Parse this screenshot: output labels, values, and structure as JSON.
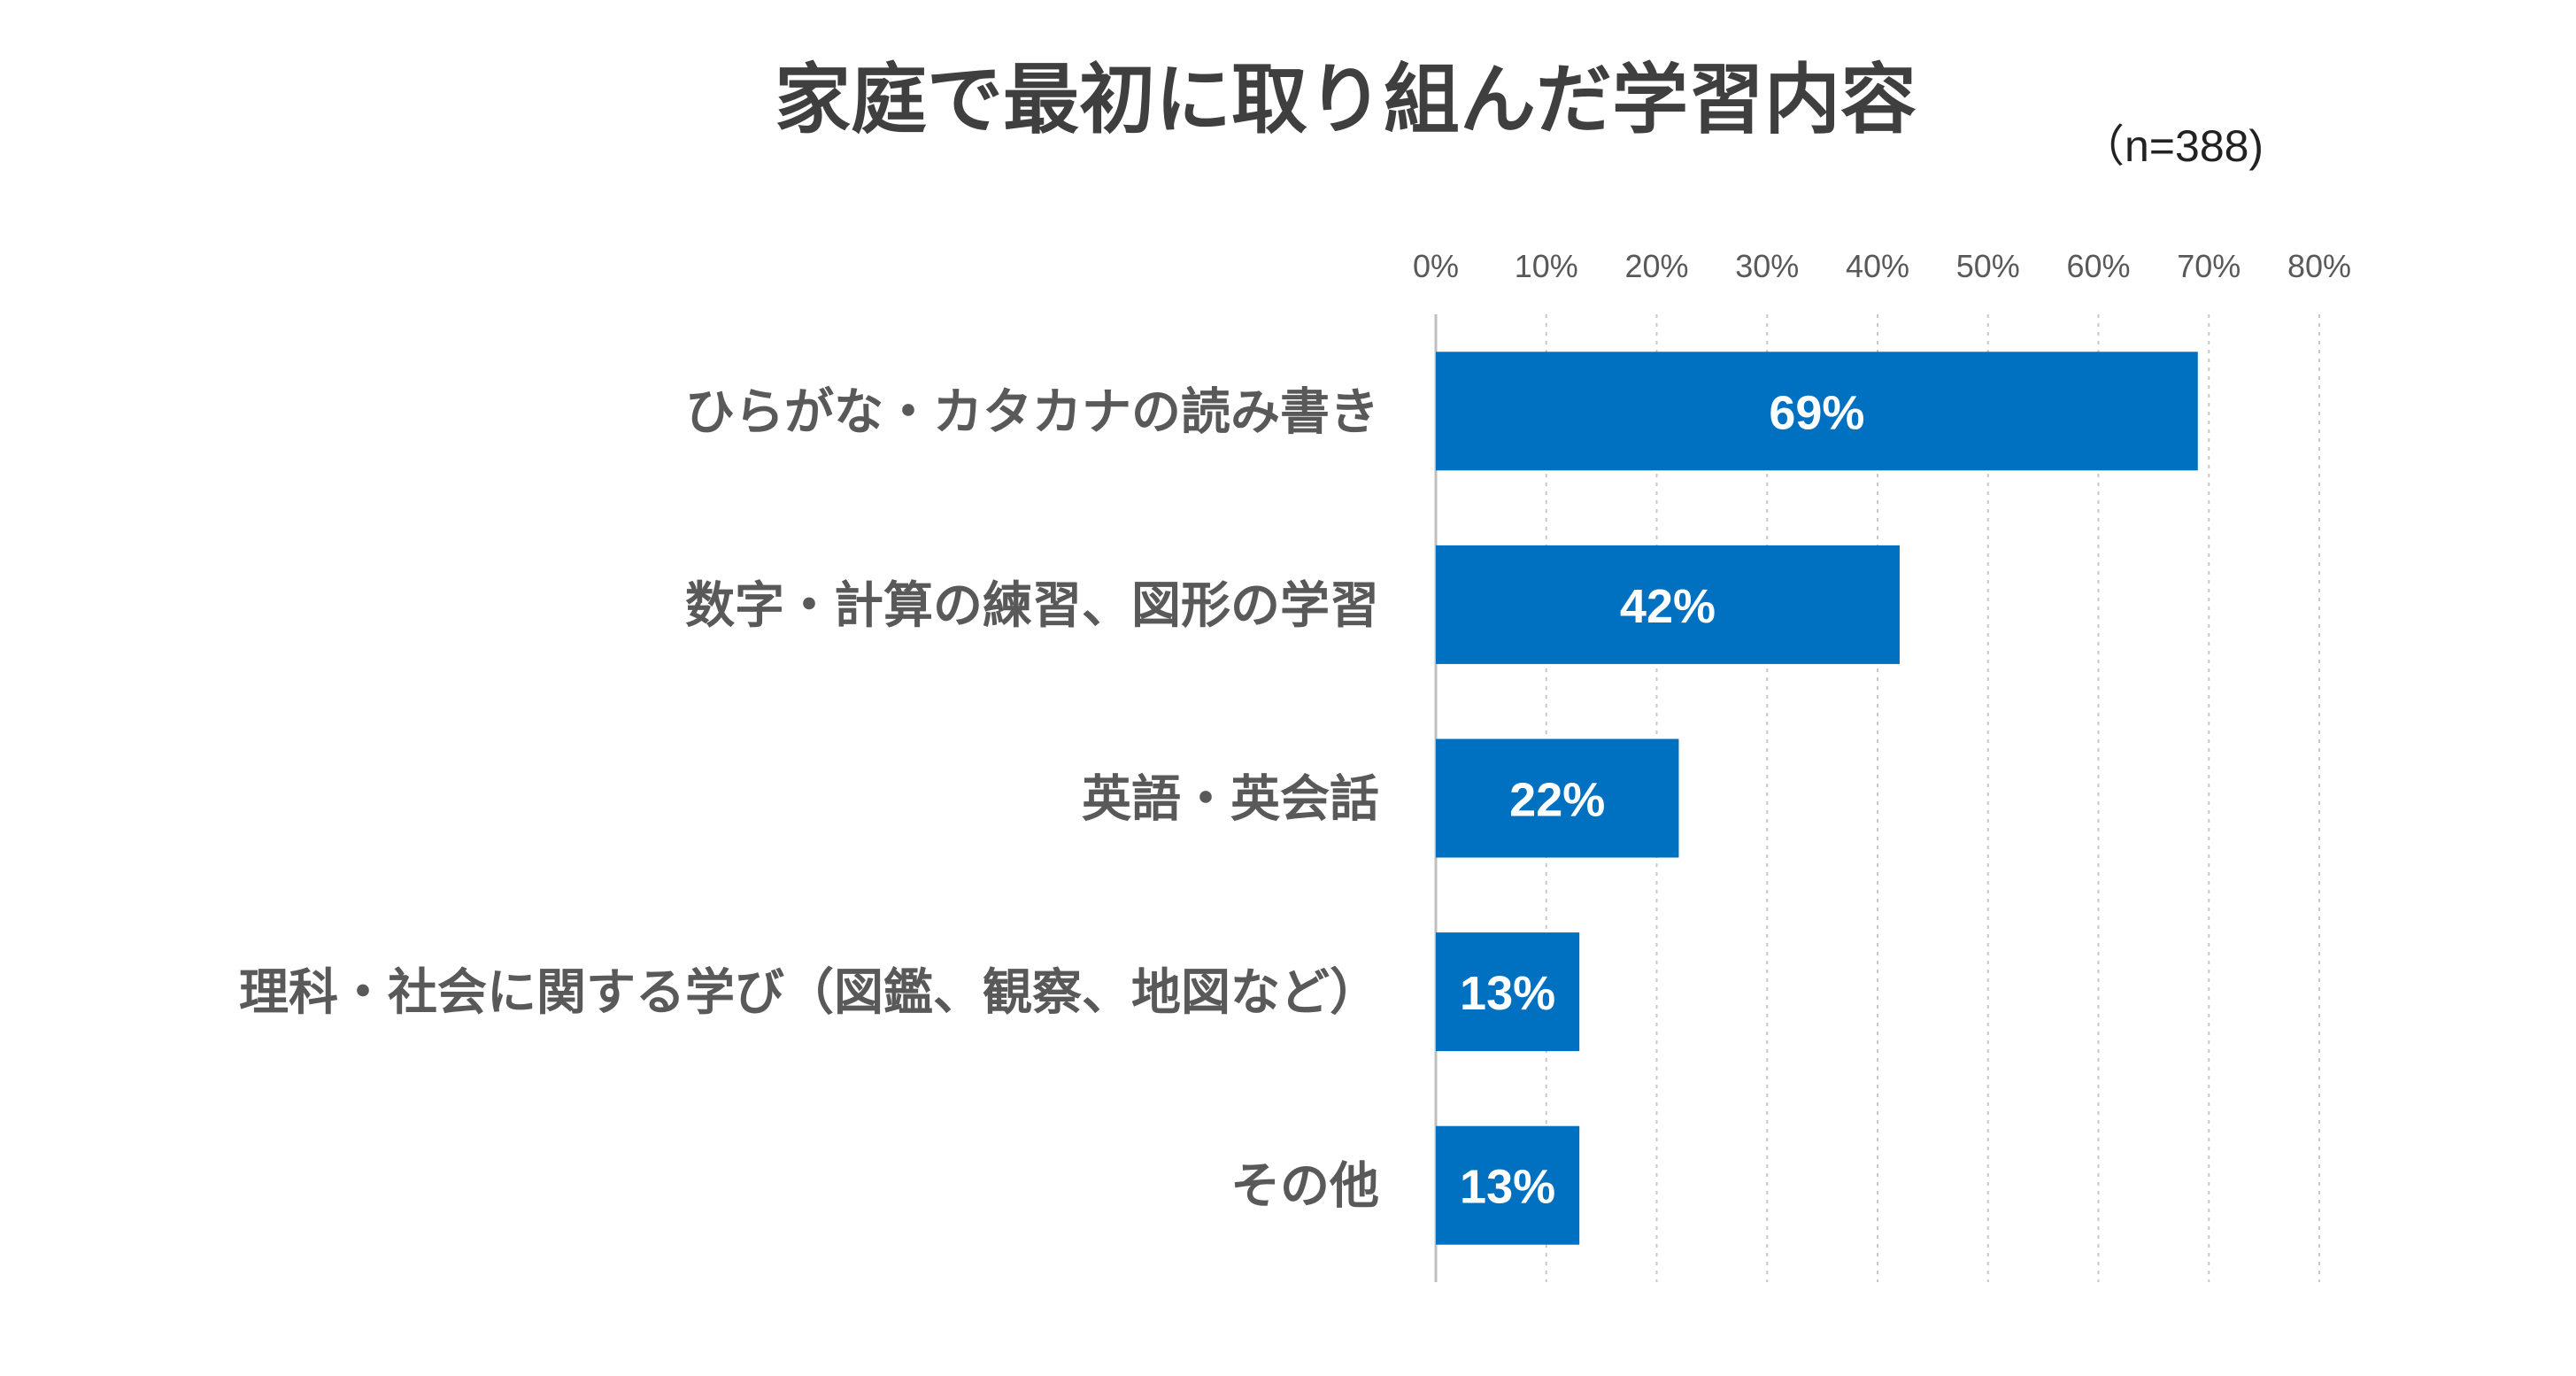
{
  "chart_data": {
    "type": "bar",
    "orientation": "horizontal",
    "title": "家庭で最初に取り組んだ学習内容",
    "subtitle": "（n=388)",
    "categories": [
      "ひらがな・カタカナの読み書き",
      "数字・計算の練習、図形の学習",
      "英語・英会話",
      "理科・社会に関する学び（図鑑、観察、地図など）",
      "その他"
    ],
    "values": [
      69,
      42,
      22,
      13,
      13
    ],
    "value_labels": [
      "69%",
      "42%",
      "22%",
      "13%",
      "13%"
    ],
    "xlim": [
      0,
      80
    ],
    "xticks": [
      0,
      10,
      20,
      30,
      40,
      50,
      60,
      70,
      80
    ],
    "xtick_labels": [
      "0%",
      "10%",
      "20%",
      "30%",
      "40%",
      "50%",
      "60%",
      "70%",
      "80%"
    ],
    "axis_position": "top",
    "grid": true,
    "legend": "none",
    "bar_color": "#0070c0",
    "grid_color": "#c8c8c8"
  }
}
